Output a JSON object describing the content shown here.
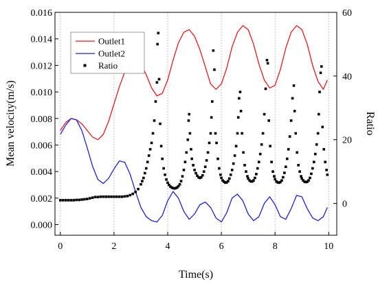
{
  "chart_data": {
    "type": "line",
    "xlabel": "Time(s)",
    "ylabel_left": "Mean velocity(m/s)",
    "ylabel_right": "Ratio",
    "xlim": [
      -0.2,
      10.3
    ],
    "ylim_left": [
      -0.0008,
      0.016
    ],
    "ylim_right": [
      -10,
      60
    ],
    "x_ticks": [
      0,
      2,
      4,
      6,
      8,
      10
    ],
    "x_tick_labels": [
      "0",
      "2",
      "4",
      "6",
      "8",
      "10"
    ],
    "y_left_ticks": [
      0.0,
      0.002,
      0.004,
      0.006,
      0.008,
      0.01,
      0.012,
      0.014,
      0.016
    ],
    "y_left_tick_labels": [
      "0.000",
      "0.002",
      "0.004",
      "0.006",
      "0.008",
      "0.010",
      "0.012",
      "0.014",
      "0.016"
    ],
    "y_right_ticks": [
      0,
      20,
      40,
      60
    ],
    "y_right_tick_labels": [
      "0",
      "20",
      "40",
      "60"
    ],
    "grid": "vertical dotted lines at x ticks",
    "legend_position": "top-left",
    "series": [
      {
        "name": "Outlet1",
        "axis": "left",
        "color": "#e41a1c",
        "style": "line",
        "points": [
          [
            0.0,
            0.0071
          ],
          [
            0.2,
            0.0077
          ],
          [
            0.4,
            0.008
          ],
          [
            0.6,
            0.0079
          ],
          [
            0.8,
            0.0076
          ],
          [
            1.0,
            0.0071
          ],
          [
            1.2,
            0.0066
          ],
          [
            1.4,
            0.0064
          ],
          [
            1.6,
            0.0068
          ],
          [
            1.8,
            0.0078
          ],
          [
            2.0,
            0.0091
          ],
          [
            2.2,
            0.0104
          ],
          [
            2.4,
            0.0115
          ],
          [
            2.6,
            0.0122
          ],
          [
            2.8,
            0.0124
          ],
          [
            3.0,
            0.0121
          ],
          [
            3.2,
            0.0113
          ],
          [
            3.4,
            0.0103
          ],
          [
            3.6,
            0.0097
          ],
          [
            3.8,
            0.0099
          ],
          [
            4.0,
            0.0109
          ],
          [
            4.2,
            0.0124
          ],
          [
            4.4,
            0.0137
          ],
          [
            4.6,
            0.0145
          ],
          [
            4.8,
            0.0147
          ],
          [
            5.0,
            0.0142
          ],
          [
            5.2,
            0.0132
          ],
          [
            5.4,
            0.0119
          ],
          [
            5.6,
            0.0106
          ],
          [
            5.8,
            0.0102
          ],
          [
            6.0,
            0.0106
          ],
          [
            6.2,
            0.0118
          ],
          [
            6.4,
            0.0134
          ],
          [
            6.6,
            0.0145
          ],
          [
            6.8,
            0.015
          ],
          [
            7.0,
            0.0147
          ],
          [
            7.2,
            0.0136
          ],
          [
            7.4,
            0.0121
          ],
          [
            7.6,
            0.0109
          ],
          [
            7.8,
            0.0103
          ],
          [
            8.0,
            0.0105
          ],
          [
            8.2,
            0.0117
          ],
          [
            8.4,
            0.0133
          ],
          [
            8.6,
            0.0145
          ],
          [
            8.8,
            0.015
          ],
          [
            9.0,
            0.0147
          ],
          [
            9.2,
            0.0136
          ],
          [
            9.4,
            0.012
          ],
          [
            9.6,
            0.0108
          ],
          [
            9.8,
            0.0102
          ],
          [
            9.95,
            0.0109
          ]
        ]
      },
      {
        "name": "Outlet2",
        "axis": "left",
        "color": "#1f1fd6",
        "style": "line",
        "points": [
          [
            0.0,
            0.0068
          ],
          [
            0.2,
            0.0075
          ],
          [
            0.4,
            0.008
          ],
          [
            0.6,
            0.0079
          ],
          [
            0.8,
            0.0071
          ],
          [
            1.0,
            0.0058
          ],
          [
            1.2,
            0.0044
          ],
          [
            1.4,
            0.0034
          ],
          [
            1.6,
            0.0031
          ],
          [
            1.8,
            0.0035
          ],
          [
            2.0,
            0.0042
          ],
          [
            2.2,
            0.0048
          ],
          [
            2.4,
            0.0047
          ],
          [
            2.6,
            0.0038
          ],
          [
            2.8,
            0.0025
          ],
          [
            3.0,
            0.0013
          ],
          [
            3.2,
            0.0006
          ],
          [
            3.4,
            0.0003
          ],
          [
            3.6,
            0.0002
          ],
          [
            3.8,
            0.0007
          ],
          [
            4.0,
            0.0018
          ],
          [
            4.2,
            0.0025
          ],
          [
            4.4,
            0.002
          ],
          [
            4.6,
            0.001
          ],
          [
            4.8,
            0.0004
          ],
          [
            5.0,
            0.0008
          ],
          [
            5.2,
            0.0015
          ],
          [
            5.4,
            0.0017
          ],
          [
            5.6,
            0.0013
          ],
          [
            5.8,
            0.0005
          ],
          [
            6.0,
            0.0002
          ],
          [
            6.2,
            0.0009
          ],
          [
            6.4,
            0.002
          ],
          [
            6.6,
            0.0023
          ],
          [
            6.8,
            0.0018
          ],
          [
            7.0,
            0.0008
          ],
          [
            7.2,
            0.0003
          ],
          [
            7.4,
            0.0006
          ],
          [
            7.6,
            0.0016
          ],
          [
            7.8,
            0.0021
          ],
          [
            8.0,
            0.0015
          ],
          [
            8.2,
            0.0006
          ],
          [
            8.4,
            0.0004
          ],
          [
            8.6,
            0.0012
          ],
          [
            8.8,
            0.0022
          ],
          [
            9.0,
            0.0021
          ],
          [
            9.2,
            0.0012
          ],
          [
            9.4,
            0.0005
          ],
          [
            9.6,
            0.0003
          ],
          [
            9.8,
            0.0006
          ],
          [
            9.95,
            0.0013
          ]
        ]
      },
      {
        "name": "Ratio",
        "axis": "right",
        "color": "#000000",
        "style": "square-markers",
        "points": [
          [
            0.0,
            1.0
          ],
          [
            0.1,
            1.0
          ],
          [
            0.2,
            1.0
          ],
          [
            0.3,
            1.0
          ],
          [
            0.4,
            1.0
          ],
          [
            0.5,
            1.0
          ],
          [
            0.6,
            1.1
          ],
          [
            0.7,
            1.1
          ],
          [
            0.8,
            1.2
          ],
          [
            0.9,
            1.3
          ],
          [
            1.0,
            1.4
          ],
          [
            1.1,
            1.6
          ],
          [
            1.2,
            1.8
          ],
          [
            1.3,
            2.0
          ],
          [
            1.4,
            2.0
          ],
          [
            1.5,
            2.1
          ],
          [
            1.6,
            2.1
          ],
          [
            1.7,
            2.1
          ],
          [
            1.8,
            2.1
          ],
          [
            1.9,
            2.1
          ],
          [
            2.0,
            2.1
          ],
          [
            2.1,
            2.1
          ],
          [
            2.2,
            2.1
          ],
          [
            2.3,
            2.1
          ],
          [
            2.4,
            2.2
          ],
          [
            2.5,
            2.3
          ],
          [
            2.6,
            2.6
          ],
          [
            2.7,
            3.0
          ],
          [
            2.8,
            3.6
          ],
          [
            2.9,
            4.5
          ],
          [
            3.0,
            6.0
          ],
          [
            3.05,
            7.0
          ],
          [
            3.1,
            8.0
          ],
          [
            3.15,
            9.5
          ],
          [
            3.2,
            11.0
          ],
          [
            3.25,
            13.0
          ],
          [
            3.3,
            15.0
          ],
          [
            3.35,
            17.0
          ],
          [
            3.4,
            19.0
          ],
          [
            3.45,
            22.0
          ],
          [
            3.5,
            26.0
          ],
          [
            3.55,
            32.0
          ],
          [
            3.6,
            38.0
          ],
          [
            3.62,
            50.0
          ],
          [
            3.65,
            53.5
          ],
          [
            3.68,
            39.0
          ],
          [
            3.72,
            25.0
          ],
          [
            3.76,
            18.0
          ],
          [
            3.8,
            14.0
          ],
          [
            3.85,
            11.0
          ],
          [
            3.9,
            9.0
          ],
          [
            3.95,
            7.5
          ],
          [
            4.0,
            6.5
          ],
          [
            4.05,
            5.8
          ],
          [
            4.1,
            5.3
          ],
          [
            4.15,
            5.0
          ],
          [
            4.2,
            4.8
          ],
          [
            4.25,
            4.7
          ],
          [
            4.3,
            4.8
          ],
          [
            4.35,
            5.0
          ],
          [
            4.4,
            5.4
          ],
          [
            4.45,
            6.0
          ],
          [
            4.5,
            7.0
          ],
          [
            4.55,
            8.5
          ],
          [
            4.6,
            10.5
          ],
          [
            4.65,
            13.0
          ],
          [
            4.7,
            16.0
          ],
          [
            4.75,
            20.0
          ],
          [
            4.78,
            26.0
          ],
          [
            4.8,
            28.0
          ],
          [
            4.83,
            22.0
          ],
          [
            4.87,
            17.0
          ],
          [
            4.9,
            14.0
          ],
          [
            4.95,
            12.0
          ],
          [
            5.0,
            10.5
          ],
          [
            5.05,
            9.5
          ],
          [
            5.1,
            8.7
          ],
          [
            5.15,
            8.2
          ],
          [
            5.2,
            8.0
          ],
          [
            5.25,
            8.2
          ],
          [
            5.3,
            8.8
          ],
          [
            5.35,
            10.0
          ],
          [
            5.4,
            11.5
          ],
          [
            5.45,
            13.5
          ],
          [
            5.5,
            16.0
          ],
          [
            5.55,
            19.0
          ],
          [
            5.6,
            22.0
          ],
          [
            5.63,
            27.0
          ],
          [
            5.66,
            32.0
          ],
          [
            5.7,
            48.0
          ],
          [
            5.74,
            42.0
          ],
          [
            5.78,
            22.0
          ],
          [
            5.82,
            19.0
          ],
          [
            5.87,
            14.0
          ],
          [
            5.92,
            11.0
          ],
          [
            5.97,
            9.0
          ],
          [
            6.0,
            8.0
          ],
          [
            6.05,
            7.2
          ],
          [
            6.1,
            6.8
          ],
          [
            6.15,
            6.5
          ],
          [
            6.2,
            6.6
          ],
          [
            6.25,
            7.0
          ],
          [
            6.3,
            7.8
          ],
          [
            6.35,
            9.0
          ],
          [
            6.4,
            10.5
          ],
          [
            6.45,
            12.5
          ],
          [
            6.5,
            15.0
          ],
          [
            6.55,
            18.0
          ],
          [
            6.6,
            22.0
          ],
          [
            6.63,
            27.0
          ],
          [
            6.66,
            33.0
          ],
          [
            6.7,
            35.0
          ],
          [
            6.73,
            29.0
          ],
          [
            6.77,
            22.0
          ],
          [
            6.82,
            16.0
          ],
          [
            6.87,
            12.0
          ],
          [
            6.92,
            10.0
          ],
          [
            6.97,
            8.5
          ],
          [
            7.0,
            7.8
          ],
          [
            7.05,
            7.2
          ],
          [
            7.1,
            6.9
          ],
          [
            7.15,
            6.9
          ],
          [
            7.2,
            7.2
          ],
          [
            7.25,
            8.0
          ],
          [
            7.3,
            9.2
          ],
          [
            7.35,
            11.0
          ],
          [
            7.4,
            13.0
          ],
          [
            7.45,
            15.5
          ],
          [
            7.5,
            18.5
          ],
          [
            7.55,
            22.0
          ],
          [
            7.6,
            28.0
          ],
          [
            7.65,
            36.0
          ],
          [
            7.7,
            45.0
          ],
          [
            7.73,
            44.0
          ],
          [
            7.77,
            26.0
          ],
          [
            7.82,
            18.0
          ],
          [
            7.87,
            13.0
          ],
          [
            7.92,
            10.0
          ],
          [
            7.97,
            8.5
          ],
          [
            8.0,
            7.6
          ],
          [
            8.05,
            6.9
          ],
          [
            8.1,
            6.6
          ],
          [
            8.15,
            6.5
          ],
          [
            8.2,
            6.7
          ],
          [
            8.25,
            7.2
          ],
          [
            8.3,
            8.2
          ],
          [
            8.35,
            9.6
          ],
          [
            8.4,
            11.5
          ],
          [
            8.45,
            14.0
          ],
          [
            8.5,
            17.0
          ],
          [
            8.55,
            21.0
          ],
          [
            8.6,
            26.0
          ],
          [
            8.65,
            33.0
          ],
          [
            8.7,
            37.0
          ],
          [
            8.73,
            29.0
          ],
          [
            8.77,
            22.0
          ],
          [
            8.82,
            16.0
          ],
          [
            8.87,
            12.0
          ],
          [
            8.92,
            10.0
          ],
          [
            8.97,
            8.5
          ],
          [
            9.0,
            7.8
          ],
          [
            9.05,
            7.2
          ],
          [
            9.1,
            6.8
          ],
          [
            9.15,
            6.7
          ],
          [
            9.2,
            6.8
          ],
          [
            9.25,
            7.2
          ],
          [
            9.3,
            8.0
          ],
          [
            9.35,
            9.3
          ],
          [
            9.4,
            11.0
          ],
          [
            9.45,
            13.0
          ],
          [
            9.5,
            15.5
          ],
          [
            9.55,
            18.5
          ],
          [
            9.6,
            22.0
          ],
          [
            9.63,
            28.0
          ],
          [
            9.66,
            35.0
          ],
          [
            9.7,
            41.0
          ],
          [
            9.73,
            43.0
          ],
          [
            9.77,
            24.0
          ],
          [
            9.82,
            17.0
          ],
          [
            9.87,
            13.0
          ],
          [
            9.92,
            10.5
          ],
          [
            9.95,
            9.0
          ]
        ]
      }
    ]
  }
}
